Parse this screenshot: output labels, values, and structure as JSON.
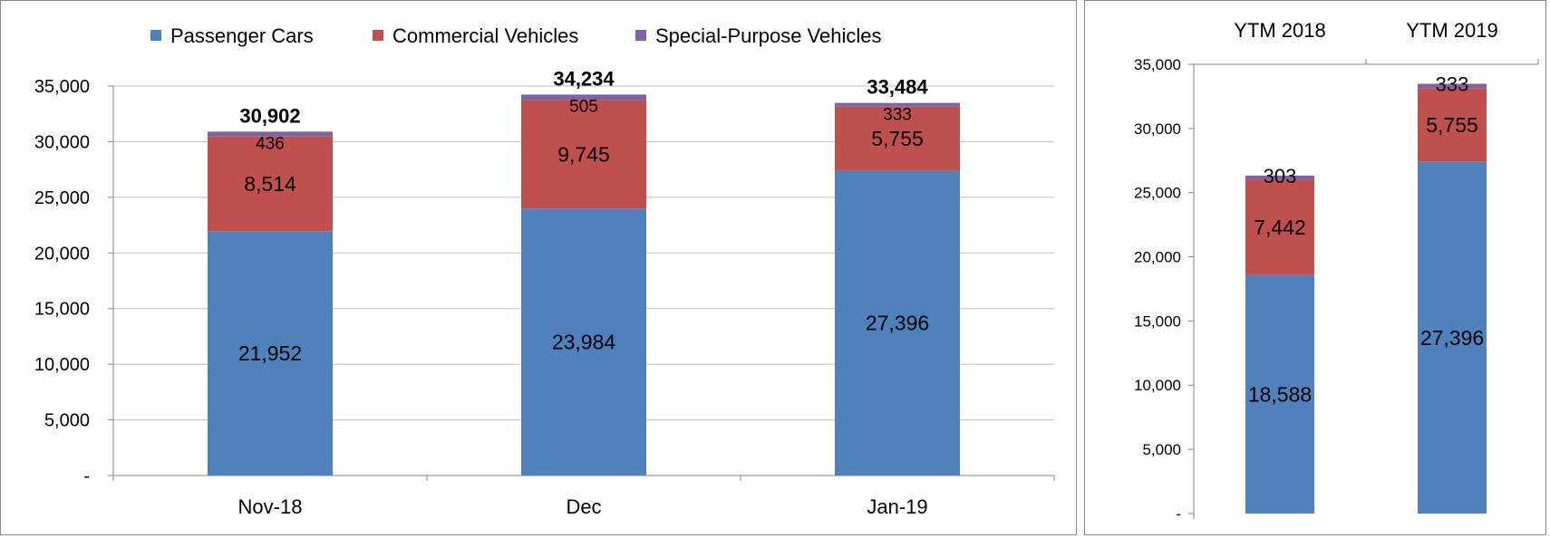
{
  "colors": {
    "passenger": "#4F81BD",
    "commercial": "#C0504D",
    "special": "#8064A2",
    "grid": "#bfbfbf",
    "axis": "#868686",
    "text": "#000000"
  },
  "chart_data": [
    {
      "type": "bar",
      "stacked": true,
      "legend": {
        "position": "top",
        "entries": [
          "Passenger Cars",
          "Commercial Vehicles",
          "Special-Purpose Vehicles"
        ]
      },
      "categories": [
        "Nov-18",
        "Dec",
        "Jan-19"
      ],
      "series": [
        {
          "name": "Passenger Cars",
          "values": [
            21952,
            23984,
            27396
          ],
          "labels": [
            "21,952",
            "23,984",
            "27,396"
          ]
        },
        {
          "name": "Commercial Vehicles",
          "values": [
            8514,
            9745,
            5755
          ],
          "labels": [
            "8,514",
            "9,745",
            "5,755"
          ]
        },
        {
          "name": "Special-Purpose Vehicles",
          "values": [
            436,
            505,
            333
          ],
          "labels": [
            "436",
            "505",
            "333"
          ]
        }
      ],
      "totals": [
        "30,902",
        "34,234",
        "33,484"
      ],
      "ylim": [
        0,
        35000
      ],
      "yticks": [
        {
          "value": 0,
          "label": "-"
        },
        {
          "value": 5000,
          "label": "5,000"
        },
        {
          "value": 10000,
          "label": "10,000"
        },
        {
          "value": 15000,
          "label": "15,000"
        },
        {
          "value": 20000,
          "label": "20,000"
        },
        {
          "value": 25000,
          "label": "25,000"
        },
        {
          "value": 30000,
          "label": "30,000"
        },
        {
          "value": 35000,
          "label": "35,000"
        }
      ],
      "grid": true
    },
    {
      "type": "bar",
      "stacked": true,
      "category_position": "top",
      "categories": [
        "YTM 2018",
        "YTM 2019"
      ],
      "series": [
        {
          "name": "Passenger Cars",
          "values": [
            18588,
            27396
          ],
          "labels": [
            "18,588",
            "27,396"
          ]
        },
        {
          "name": "Commercial Vehicles",
          "values": [
            7442,
            5755
          ],
          "labels": [
            "7,442",
            "5,755"
          ]
        },
        {
          "name": "Special-Purpose Vehicles",
          "values": [
            303,
            333
          ],
          "labels": [
            "303",
            "333"
          ]
        }
      ],
      "ylim": [
        0,
        35000
      ],
      "yticks": [
        {
          "value": 0,
          "label": "-"
        },
        {
          "value": 5000,
          "label": "5,000"
        },
        {
          "value": 10000,
          "label": "10,000"
        },
        {
          "value": 15000,
          "label": "15,000"
        },
        {
          "value": 20000,
          "label": "20,000"
        },
        {
          "value": 25000,
          "label": "25,000"
        },
        {
          "value": 30000,
          "label": "30,000"
        },
        {
          "value": 35000,
          "label": "35,000"
        }
      ],
      "grid": false
    }
  ]
}
